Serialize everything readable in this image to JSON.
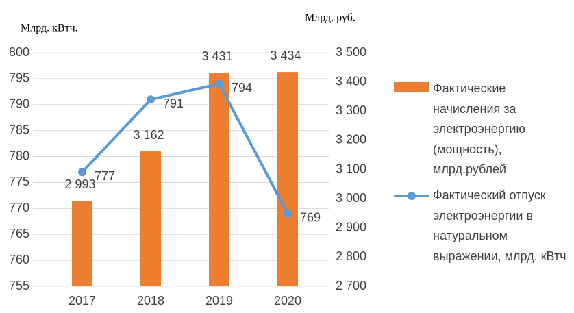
{
  "chart_data": {
    "type": "bar-line",
    "ylabel": "Млрд. кВтч.",
    "y2label": "Млрд. руб.",
    "categories": [
      "2017",
      "2018",
      "2019",
      "2020"
    ],
    "series": [
      {
        "name": "Фактические начисления за электроэнергию (мощность), млрд.рублей",
        "type": "bar",
        "axis": "y2",
        "color": "#ED7D31",
        "values": [
          2993,
          3162,
          3431,
          3434
        ],
        "value_labels": [
          "2 993",
          "3 162",
          "3 431",
          "3 434"
        ]
      },
      {
        "name": "Фактический отпуск электроэнергии в натуральном выражении, млрд. кВтч",
        "type": "line",
        "axis": "y",
        "color": "#5B9BD5",
        "values": [
          777,
          791,
          794,
          769
        ]
      }
    ],
    "ylim": [
      755,
      800
    ],
    "yticks": [
      755,
      760,
      765,
      770,
      775,
      780,
      785,
      790,
      795,
      800
    ],
    "y2lim": [
      2700,
      3500
    ],
    "y2ticks": [
      {
        "value": 2700,
        "label": "2 700"
      },
      {
        "value": 2800,
        "label": "2 800"
      },
      {
        "value": 2900,
        "label": "2 900"
      },
      {
        "value": 3000,
        "label": "3 000"
      },
      {
        "value": 3100,
        "label": "3 100"
      },
      {
        "value": 3200,
        "label": "3 200"
      },
      {
        "value": 3300,
        "label": "3 300"
      },
      {
        "value": 3400,
        "label": "3 400"
      },
      {
        "value": 3500,
        "label": "3 500"
      }
    ],
    "grid": true,
    "legend": "right"
  }
}
